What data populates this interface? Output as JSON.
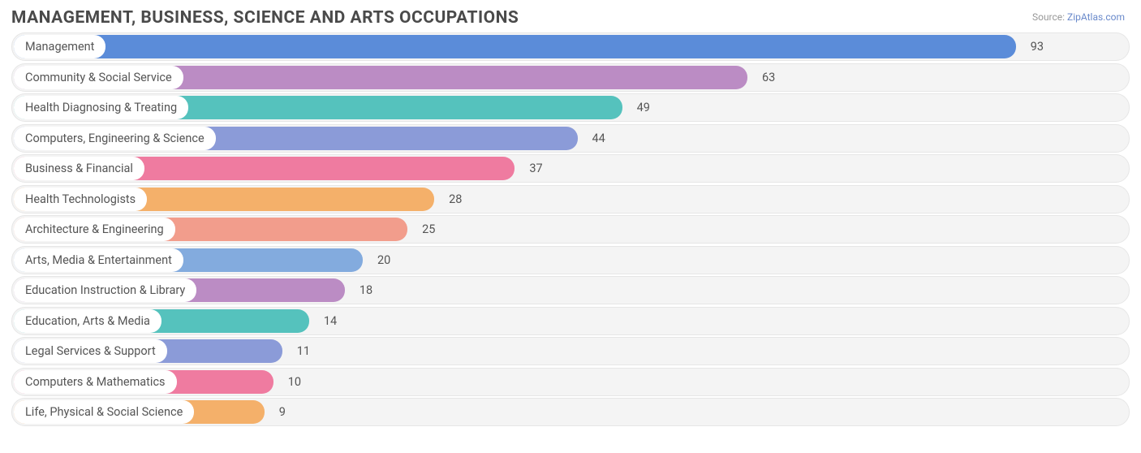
{
  "title": "MANAGEMENT, BUSINESS, SCIENCE AND ARTS OCCUPATIONS",
  "source_prefix": "Source: ",
  "source_link": "ZipAtlas.com",
  "chart": {
    "type": "bar-horizontal",
    "background_color": "#ffffff",
    "row_bg_color": "#f4f4f4",
    "row_border_color": "#e6e6e6",
    "pill_bg_color": "#ffffff",
    "text_color": "#555555",
    "axis_text_color": "#888888",
    "value_min": -20,
    "value_max": 105,
    "bar_origin_value": -19,
    "categories": [
      {
        "label": "Management",
        "value": 93,
        "color": "#5b8cd9"
      },
      {
        "label": "Community & Social Service",
        "value": 63,
        "color": "#bb8cc4"
      },
      {
        "label": "Health Diagnosing & Treating",
        "value": 49,
        "color": "#55c2bd"
      },
      {
        "label": "Computers, Engineering & Science",
        "value": 44,
        "color": "#8b9bd8"
      },
      {
        "label": "Business & Financial",
        "value": 37,
        "color": "#ef7ba0"
      },
      {
        "label": "Health Technologists",
        "value": 28,
        "color": "#f4b06a"
      },
      {
        "label": "Architecture & Engineering",
        "value": 25,
        "color": "#f29d8c"
      },
      {
        "label": "Arts, Media & Entertainment",
        "value": 20,
        "color": "#83abde"
      },
      {
        "label": "Education Instruction & Library",
        "value": 18,
        "color": "#bb8cc4"
      },
      {
        "label": "Education, Arts & Media",
        "value": 14,
        "color": "#55c2bd"
      },
      {
        "label": "Legal Services & Support",
        "value": 11,
        "color": "#8b9bd8"
      },
      {
        "label": "Computers & Mathematics",
        "value": 10,
        "color": "#ef7ba0"
      },
      {
        "label": "Life, Physical & Social Science",
        "value": 9,
        "color": "#f4b06a"
      }
    ],
    "xticks": [
      0,
      50,
      100
    ]
  }
}
